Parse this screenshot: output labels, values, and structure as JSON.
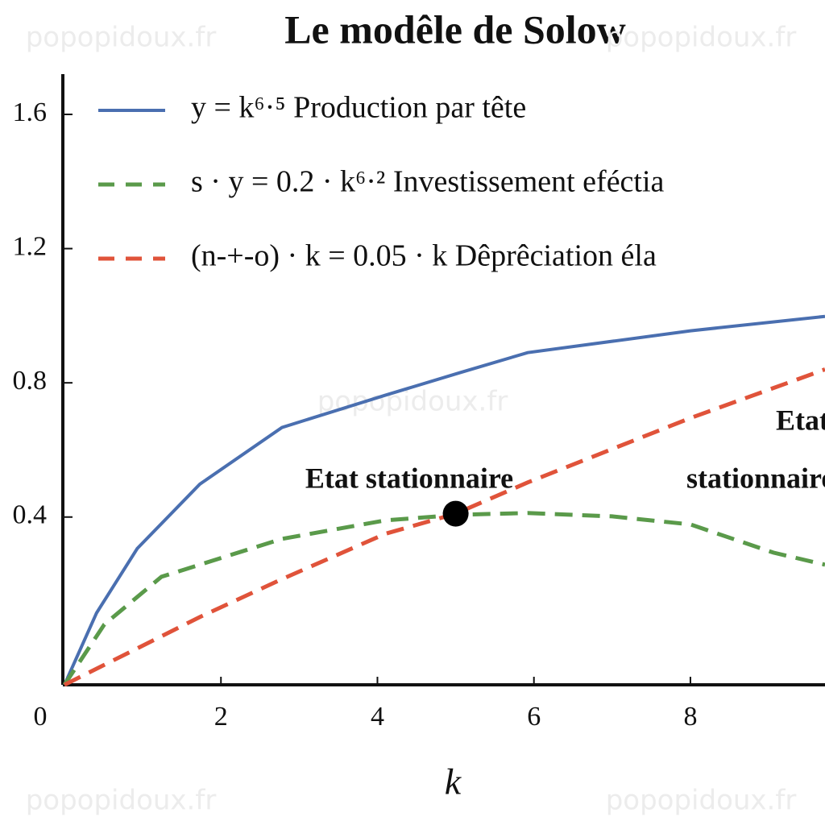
{
  "chart_data": {
    "type": "line",
    "title": "Le modêle de Solow",
    "xlabel": "k",
    "xlim": [
      0,
      9.72
    ],
    "ylim": [
      -0.1,
      1.72
    ],
    "xticks": [
      0,
      2,
      4,
      6,
      8
    ],
    "yticks": [
      0.4,
      0.8,
      1.2,
      1.6
    ],
    "series": [
      {
        "name": "y = k⁶·⁵ Production par tête",
        "color": "#4a6fb0",
        "linestyle": "solid",
        "x": [
          0,
          0.41,
          0.93,
          1.73,
          2.78,
          4.1,
          5.05,
          5.92,
          8.0,
          9.72
        ],
        "values": [
          -0.1,
          0.114,
          0.306,
          0.498,
          0.667,
          0.763,
          0.83,
          0.89,
          0.955,
          0.998
        ]
      },
      {
        "name": "s · y = 0.2 · k⁶·² Investissement eféctia",
        "color": "#5a9a4a",
        "linestyle": "dashed",
        "x": [
          0,
          0.51,
          1.24,
          1.73,
          2.78,
          4.1,
          5.05,
          5.92,
          7.0,
          8.0,
          9.06,
          9.72
        ],
        "values": [
          -0.1,
          0.08,
          0.222,
          0.258,
          0.335,
          0.39,
          0.407,
          0.412,
          0.402,
          0.378,
          0.294,
          0.258
        ]
      },
      {
        "name": "(n-+-o) · k = 0.05 · k  Dêprêciation éla",
        "color": "#e0533a",
        "linestyle": "dashed",
        "x": [
          0,
          1.73,
          2.78,
          4.1,
          5.0,
          5.92,
          8.0,
          9.72
        ],
        "values": [
          -0.1,
          0.102,
          0.215,
          0.35,
          0.41,
          0.503,
          0.695,
          0.84
        ]
      }
    ],
    "points": [
      {
        "x": 5.0,
        "y": 0.41,
        "color": "#000000"
      }
    ],
    "annotations": [
      "Etat stationnaire",
      "Etat",
      "stationnaire"
    ],
    "watermark": "popopidoux.fr"
  }
}
